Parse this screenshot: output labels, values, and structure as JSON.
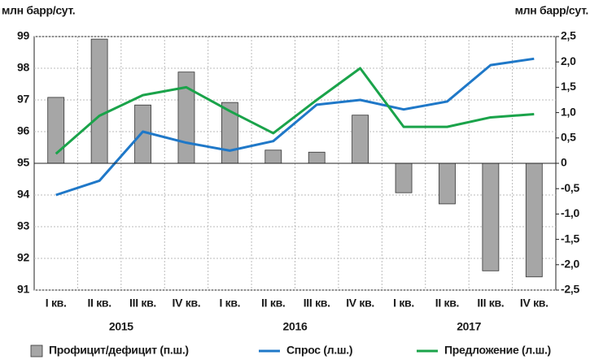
{
  "chart_data": {
    "type": "bar_line",
    "y_label": "млн барр/сут.",
    "y2_label": "млн барр/сут.",
    "categories": [
      "I кв.",
      "II кв.",
      "III кв.",
      "IV кв.",
      "I кв.",
      "II кв.",
      "III кв.",
      "IV кв.",
      "I кв.",
      "II кв.",
      "III кв.",
      "IV кв."
    ],
    "years": [
      "2015",
      "2016",
      "2017"
    ],
    "ylim": [
      91,
      99
    ],
    "yticks": [
      91,
      92,
      93,
      94,
      95,
      96,
      97,
      98,
      99
    ],
    "y2lim": [
      -2.5,
      2.5
    ],
    "y2ticks": [
      {
        "value": -2.5,
        "label": "-2,5"
      },
      {
        "value": -2.0,
        "label": "-2,0"
      },
      {
        "value": -1.5,
        "label": "-1,5"
      },
      {
        "value": -1.0,
        "label": "-1,0"
      },
      {
        "value": -0.5,
        "label": "-0,5"
      },
      0,
      {
        "value": 0.5,
        "label": "0,5"
      },
      {
        "value": 1.0,
        "label": "1,0"
      },
      {
        "value": 1.5,
        "label": "1,5"
      },
      {
        "value": 2.0,
        "label": "2,0"
      },
      {
        "value": 2.5,
        "label": "2,5"
      }
    ],
    "grid": true,
    "series": [
      {
        "name": "Профицит/дефицит (п.ш.)",
        "type": "bar",
        "axis": "y2",
        "color": "#a6a6a6",
        "values": [
          1.3,
          2.45,
          1.15,
          1.8,
          1.2,
          0.26,
          0.22,
          0.95,
          -0.58,
          -0.8,
          -2.12,
          -2.24
        ]
      },
      {
        "name": "Спрос (л.ш.)",
        "type": "line",
        "color": "#1f78c8",
        "values": [
          94.0,
          94.45,
          96.0,
          95.65,
          95.4,
          95.7,
          96.85,
          97.0,
          96.7,
          96.95,
          98.1,
          98.3
        ]
      },
      {
        "name": "Предложение (л.ш.)",
        "type": "line",
        "color": "#1aa34a",
        "values": [
          95.3,
          96.5,
          97.15,
          97.4,
          96.65,
          95.95,
          97.0,
          98.0,
          96.15,
          96.15,
          96.45,
          96.55
        ]
      }
    ]
  }
}
